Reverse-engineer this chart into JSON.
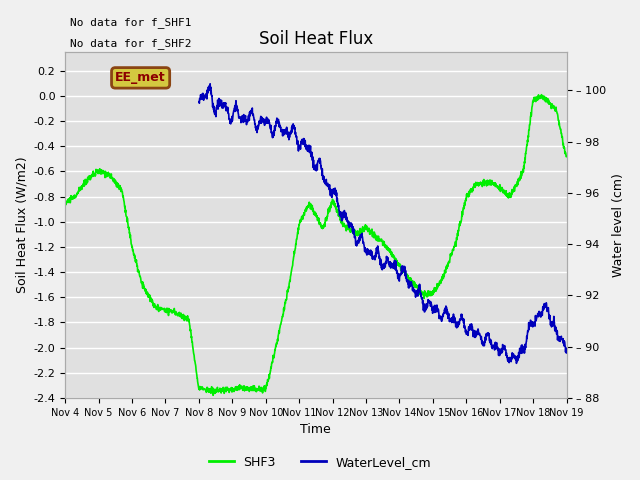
{
  "title": "Soil Heat Flux",
  "ylabel_left": "Soil Heat Flux (W/m2)",
  "ylabel_right": "Water level (cm)",
  "xlabel": "Time",
  "ylim_left": [
    -2.4,
    0.35
  ],
  "ylim_right": [
    88,
    101.5
  ],
  "yticks_left": [
    0.2,
    0.0,
    -0.2,
    -0.4,
    -0.6,
    -0.8,
    -1.0,
    -1.2,
    -1.4,
    -1.6,
    -1.8,
    -2.0,
    -2.2,
    -2.4
  ],
  "yticks_right": [
    88,
    90,
    92,
    94,
    96,
    98,
    100
  ],
  "xtick_labels": [
    "Nov 4",
    "Nov 5",
    "Nov 6",
    "Nov 7",
    "Nov 8",
    "Nov 9",
    "Nov 10",
    "Nov 11",
    "Nov 12",
    "Nov 13",
    "Nov 14",
    "Nov 15",
    "Nov 16",
    "Nov 17",
    "Nov 18",
    "Nov 19"
  ],
  "annotation_text1": "No data for f_SHF1",
  "annotation_text2": "No data for f_SHF2",
  "box_label": "EE_met",
  "shf3_color": "#00ee00",
  "water_color": "#0000bb",
  "background_color": "#e0e0e0",
  "fig_background": "#f0f0f0",
  "legend_labels": [
    "SHF3",
    "WaterLevel_cm"
  ],
  "title_fontsize": 12,
  "axis_fontsize": 9,
  "tick_fontsize": 8
}
